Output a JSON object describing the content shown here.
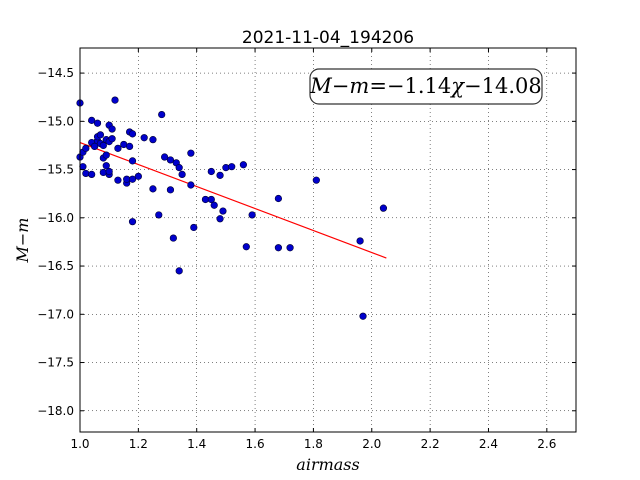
{
  "chart_data": {
    "type": "scatter",
    "title": "2021-11-04_194206",
    "xlabel": "airmass",
    "ylabel": "M−m",
    "xlim": [
      1.0,
      2.7
    ],
    "ylim": [
      -18.22,
      -14.24
    ],
    "x_ticks": [
      1.0,
      1.2,
      1.4,
      1.6,
      1.8,
      2.0,
      2.2,
      2.4,
      2.6
    ],
    "x_tick_labels": [
      "1.0",
      "1.2",
      "1.4",
      "1.6",
      "1.8",
      "2.0",
      "2.2",
      "2.4",
      "2.6"
    ],
    "y_ticks": [
      -14.5,
      -15.0,
      -15.5,
      -16.0,
      -16.5,
      -17.0,
      -17.5,
      -18.0
    ],
    "y_tick_labels": [
      "−14.5",
      "−15.0",
      "−15.5",
      "−16.0",
      "−16.5",
      "−17.0",
      "−17.5",
      "−18.0"
    ],
    "grid": true,
    "point_color": "#0000cc",
    "line_color": "#ff0000",
    "points": [
      {
        "x": 1.0,
        "y": -14.81
      },
      {
        "x": 1.0,
        "y": -15.37
      },
      {
        "x": 1.01,
        "y": -15.47
      },
      {
        "x": 1.01,
        "y": -15.32
      },
      {
        "x": 1.02,
        "y": -15.28
      },
      {
        "x": 1.02,
        "y": -15.54
      },
      {
        "x": 1.04,
        "y": -15.55
      },
      {
        "x": 1.04,
        "y": -14.99
      },
      {
        "x": 1.04,
        "y": -15.22
      },
      {
        "x": 1.05,
        "y": -15.26
      },
      {
        "x": 1.06,
        "y": -15.2
      },
      {
        "x": 1.06,
        "y": -15.16
      },
      {
        "x": 1.06,
        "y": -15.02
      },
      {
        "x": 1.07,
        "y": -15.14
      },
      {
        "x": 1.07,
        "y": -15.23
      },
      {
        "x": 1.08,
        "y": -15.25
      },
      {
        "x": 1.08,
        "y": -15.38
      },
      {
        "x": 1.08,
        "y": -15.53
      },
      {
        "x": 1.09,
        "y": -15.35
      },
      {
        "x": 1.09,
        "y": -15.46
      },
      {
        "x": 1.09,
        "y": -15.19
      },
      {
        "x": 1.1,
        "y": -15.21
      },
      {
        "x": 1.1,
        "y": -15.55
      },
      {
        "x": 1.1,
        "y": -15.52
      },
      {
        "x": 1.1,
        "y": -15.04
      },
      {
        "x": 1.11,
        "y": -15.08
      },
      {
        "x": 1.11,
        "y": -15.18
      },
      {
        "x": 1.12,
        "y": -14.78
      },
      {
        "x": 1.13,
        "y": -15.61
      },
      {
        "x": 1.13,
        "y": -15.28
      },
      {
        "x": 1.15,
        "y": -15.24
      },
      {
        "x": 1.16,
        "y": -15.64
      },
      {
        "x": 1.16,
        "y": -15.6
      },
      {
        "x": 1.17,
        "y": -15.11
      },
      {
        "x": 1.17,
        "y": -15.26
      },
      {
        "x": 1.18,
        "y": -15.13
      },
      {
        "x": 1.18,
        "y": -15.41
      },
      {
        "x": 1.18,
        "y": -15.6
      },
      {
        "x": 1.18,
        "y": -16.04
      },
      {
        "x": 1.2,
        "y": -15.57
      },
      {
        "x": 1.22,
        "y": -15.17
      },
      {
        "x": 1.25,
        "y": -15.19
      },
      {
        "x": 1.25,
        "y": -15.7
      },
      {
        "x": 1.27,
        "y": -15.97
      },
      {
        "x": 1.28,
        "y": -14.93
      },
      {
        "x": 1.29,
        "y": -15.37
      },
      {
        "x": 1.31,
        "y": -15.71
      },
      {
        "x": 1.31,
        "y": -15.4
      },
      {
        "x": 1.32,
        "y": -16.21
      },
      {
        "x": 1.33,
        "y": -15.43
      },
      {
        "x": 1.34,
        "y": -15.48
      },
      {
        "x": 1.34,
        "y": -16.55
      },
      {
        "x": 1.35,
        "y": -15.55
      },
      {
        "x": 1.38,
        "y": -15.33
      },
      {
        "x": 1.38,
        "y": -15.66
      },
      {
        "x": 1.39,
        "y": -16.1
      },
      {
        "x": 1.43,
        "y": -15.81
      },
      {
        "x": 1.45,
        "y": -15.81
      },
      {
        "x": 1.45,
        "y": -15.52
      },
      {
        "x": 1.46,
        "y": -15.87
      },
      {
        "x": 1.48,
        "y": -15.56
      },
      {
        "x": 1.48,
        "y": -16.01
      },
      {
        "x": 1.49,
        "y": -15.93
      },
      {
        "x": 1.5,
        "y": -15.48
      },
      {
        "x": 1.52,
        "y": -15.47
      },
      {
        "x": 1.56,
        "y": -15.45
      },
      {
        "x": 1.57,
        "y": -16.3
      },
      {
        "x": 1.59,
        "y": -15.97
      },
      {
        "x": 1.68,
        "y": -16.31
      },
      {
        "x": 1.68,
        "y": -15.8
      },
      {
        "x": 1.72,
        "y": -16.31
      },
      {
        "x": 1.81,
        "y": -15.61
      },
      {
        "x": 1.96,
        "y": -16.24
      },
      {
        "x": 1.97,
        "y": -17.02
      },
      {
        "x": 2.04,
        "y": -15.9
      }
    ],
    "fit": {
      "slope": -1.14,
      "intercept": -14.08,
      "x_range": [
        1.0,
        2.05
      ]
    },
    "annotation": {
      "lhs_a": "M",
      "minus": "−",
      "lhs_b": "m",
      "eq": "=",
      "coef": "−1.14",
      "var": "χ",
      "const": "−14.08",
      "placement": "top-right"
    }
  }
}
